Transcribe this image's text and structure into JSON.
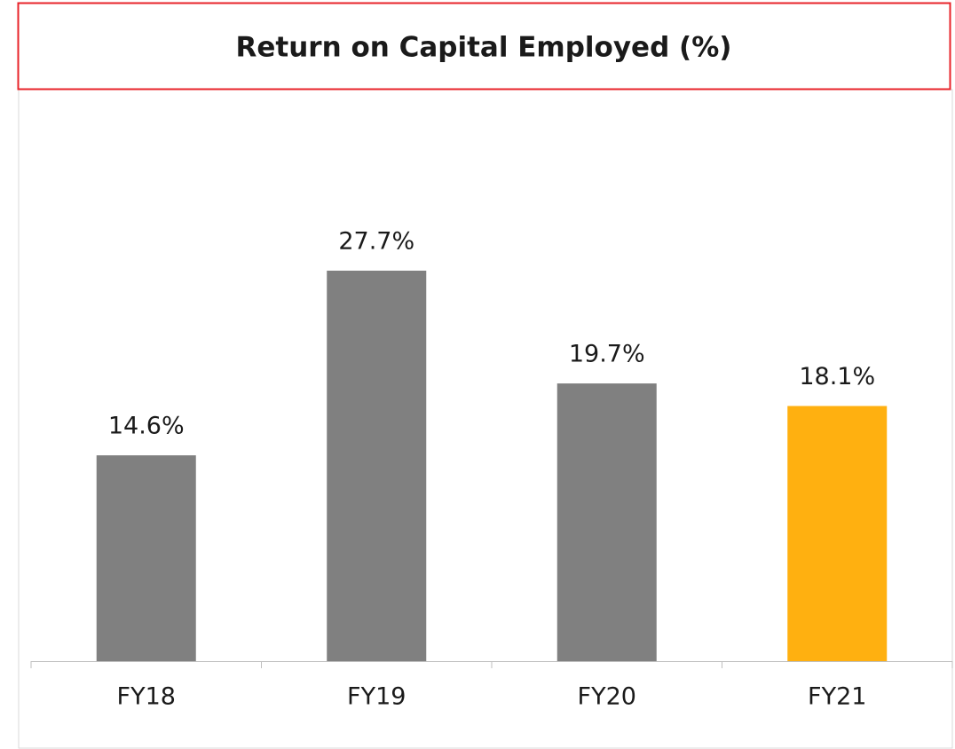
{
  "chart_data": {
    "type": "bar",
    "title": "Return on Capital Employed (%)",
    "categories": [
      "FY18",
      "FY19",
      "FY20",
      "FY21"
    ],
    "values": [
      14.6,
      27.7,
      19.7,
      18.1
    ],
    "value_labels": [
      "14.6%",
      "27.7%",
      "19.7%",
      "18.1%"
    ],
    "colors": [
      "#808080",
      "#808080",
      "#808080",
      "#ffb010"
    ]
  }
}
